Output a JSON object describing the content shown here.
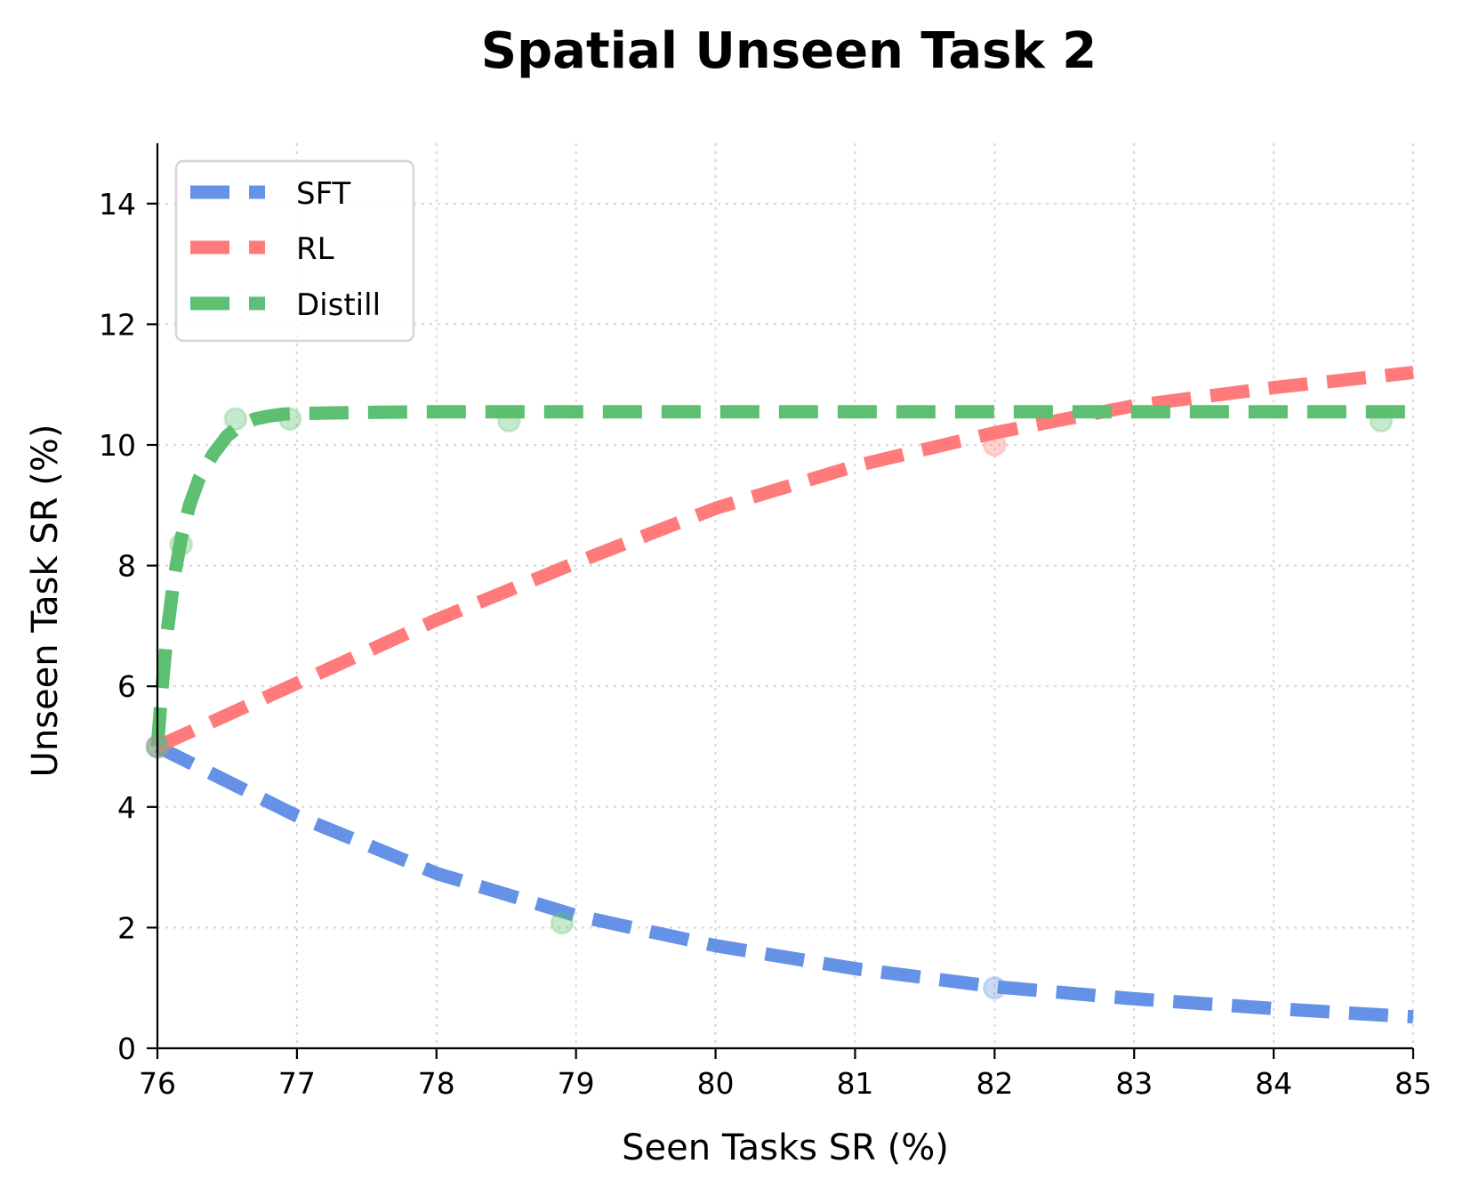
{
  "chart_data": {
    "type": "line",
    "title": "Spatial Unseen Task 2",
    "xlabel": "Seen Tasks SR (%)",
    "ylabel": "Unseen Task SR (%)",
    "xlim": [
      76,
      85
    ],
    "ylim": [
      0,
      15
    ],
    "xticks": [
      76,
      77,
      78,
      79,
      80,
      81,
      82,
      83,
      84,
      85
    ],
    "yticks": [
      0,
      2,
      4,
      6,
      8,
      10,
      12,
      14
    ],
    "grid": true,
    "legend_position": "upper left",
    "series": [
      {
        "name": "SFT",
        "color": "#4a7fe0",
        "style": "dashed fitted curve",
        "curve": {
          "x": [
            76,
            77,
            78,
            79,
            80,
            81,
            82,
            83,
            84,
            85
          ],
          "y": [
            5.0,
            3.85,
            2.9,
            2.2,
            1.7,
            1.32,
            1.02,
            0.82,
            0.66,
            0.52
          ]
        },
        "points": [
          {
            "x": 76,
            "y": 5.0
          },
          {
            "x": 82,
            "y": 1.0
          }
        ]
      },
      {
        "name": "RL",
        "color": "#ff6b6b",
        "style": "dashed fitted curve",
        "curve": {
          "x": [
            76,
            77,
            78,
            79,
            80,
            81,
            82,
            83,
            84,
            85
          ],
          "y": [
            5.0,
            6.05,
            7.1,
            8.05,
            8.95,
            9.65,
            10.2,
            10.65,
            10.95,
            11.2
          ]
        },
        "points": [
          {
            "x": 76,
            "y": 5.0
          },
          {
            "x": 82,
            "y": 10.0
          }
        ]
      },
      {
        "name": "Distill",
        "color": "#3cb35a",
        "style": "dashed fitted curve",
        "curve": {
          "x": [
            76,
            76.03,
            76.07,
            76.12,
            76.17,
            76.23,
            76.3,
            76.4,
            76.5,
            76.6,
            76.7,
            76.8,
            76.9,
            77,
            77.5,
            78,
            79,
            80,
            81,
            82,
            83,
            84,
            85
          ],
          "y": [
            5.0,
            5.9,
            6.9,
            7.8,
            8.45,
            9.0,
            9.45,
            9.85,
            10.15,
            10.33,
            10.43,
            10.48,
            10.51,
            10.52,
            10.54,
            10.55,
            10.55,
            10.55,
            10.55,
            10.55,
            10.55,
            10.55,
            10.55
          ]
        },
        "points": [
          {
            "x": 76,
            "y": 5.0
          },
          {
            "x": 76.17,
            "y": 8.35
          },
          {
            "x": 76.56,
            "y": 10.43
          },
          {
            "x": 76.95,
            "y": 10.43
          },
          {
            "x": 78.52,
            "y": 10.4
          },
          {
            "x": 78.9,
            "y": 2.08
          },
          {
            "x": 84.77,
            "y": 10.4
          }
        ]
      }
    ]
  },
  "legend": {
    "items": [
      {
        "label": "SFT",
        "color": "#6592e6"
      },
      {
        "label": "RL",
        "color": "#ff7b7b"
      },
      {
        "label": "Distill",
        "color": "#5cbf71"
      }
    ]
  }
}
